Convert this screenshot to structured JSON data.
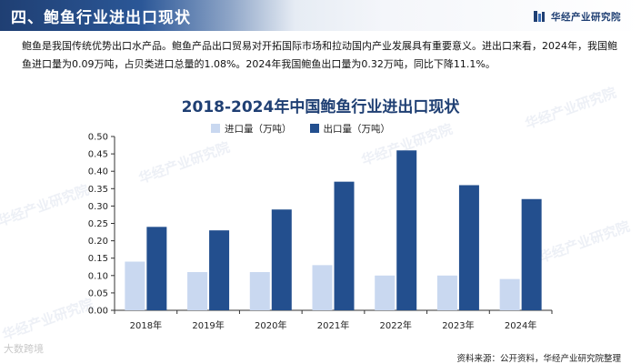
{
  "header": {
    "title": "四、鲍鱼行业进出口现状",
    "brand": "华经产业研究院",
    "brand_color": "#1f3f73"
  },
  "summary_text": "鲍鱼是我国传统优势出口水产品。鲍鱼产品出口贸易对开拓国际市场和拉动国内产业发展具有重要意义。进出口来看，2024年，我国鲍鱼进口量为0.09万吨，占贝类进口总量的1.08%。2024年我国鲍鱼出口量为0.32万吨，同比下降11.1%。",
  "source_text": "资料来源：公开资料，华经产业研究院整理",
  "corner_mark": "大数跨境",
  "watermark_text": "华经产业研究院",
  "chart_data": {
    "type": "bar",
    "title": "2018-2024年中国鲍鱼行业进出口现状",
    "categories": [
      "2018年",
      "2019年",
      "2020年",
      "2021年",
      "2022年",
      "2023年",
      "2024年"
    ],
    "series": [
      {
        "name": "进口量（万吨）",
        "color": "#c9d8f0",
        "values": [
          0.14,
          0.11,
          0.11,
          0.13,
          0.1,
          0.1,
          0.09
        ]
      },
      {
        "name": "出口量（万吨）",
        "color": "#234f8e",
        "values": [
          0.24,
          0.23,
          0.29,
          0.37,
          0.46,
          0.36,
          0.32
        ]
      }
    ],
    "ylim": [
      0,
      0.5
    ],
    "yticks": [
      "0.00",
      "0.05",
      "0.10",
      "0.15",
      "0.20",
      "0.25",
      "0.30",
      "0.35",
      "0.40",
      "0.45",
      "0.50"
    ],
    "grid": false,
    "legend_position": "top"
  }
}
